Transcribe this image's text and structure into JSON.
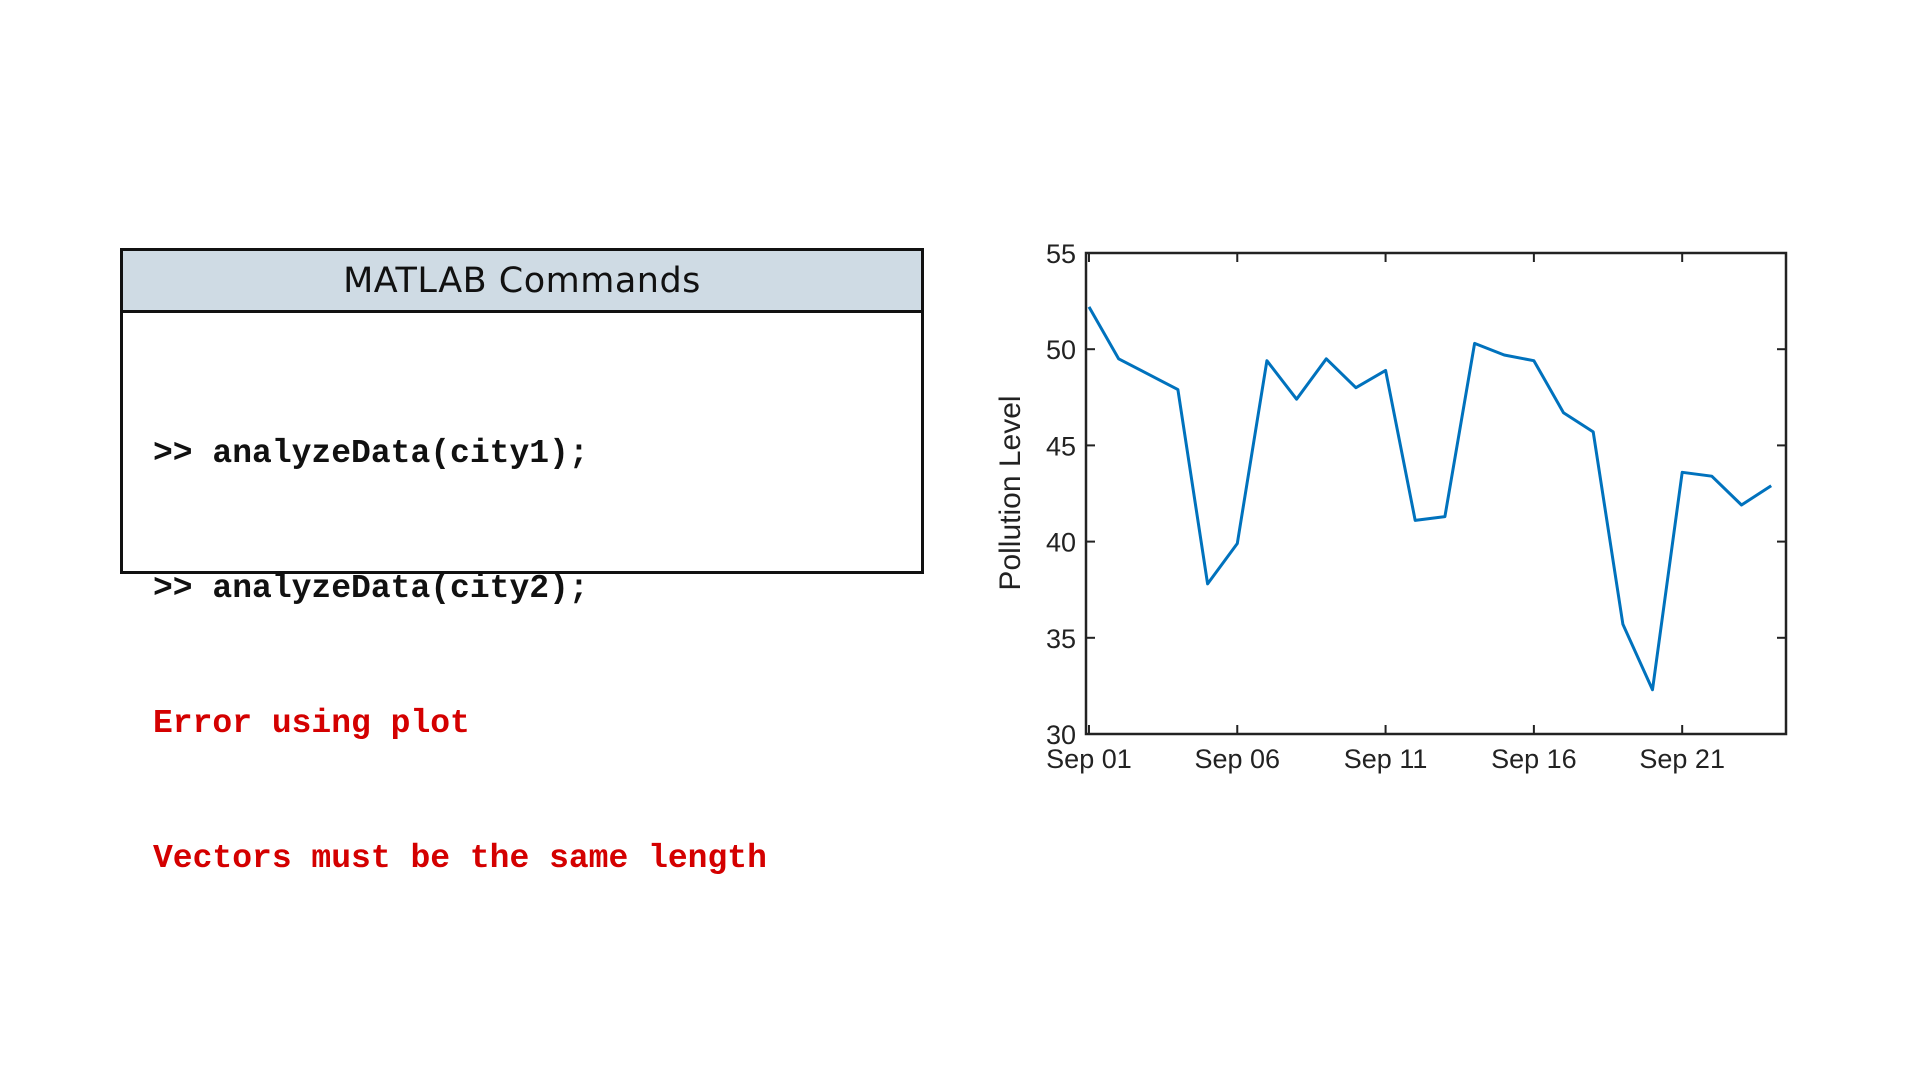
{
  "panel": {
    "title": "MATLAB Commands",
    "lines": [
      {
        "text": ">> analyzeData(city1);",
        "kind": "command"
      },
      {
        "text": ">> analyzeData(city2);",
        "kind": "command"
      },
      {
        "text": "Error using plot",
        "kind": "error"
      },
      {
        "text": "Vectors must be the same length",
        "kind": "error"
      }
    ]
  },
  "chart_data": {
    "type": "line",
    "title": "",
    "xlabel": "",
    "ylabel": "Pollution Level",
    "x": [
      "Sep 01",
      "Sep 02",
      "Sep 03",
      "Sep 04",
      "Sep 05",
      "Sep 06",
      "Sep 07",
      "Sep 08",
      "Sep 09",
      "Sep 10",
      "Sep 11",
      "Sep 12",
      "Sep 13",
      "Sep 14",
      "Sep 15",
      "Sep 16",
      "Sep 17",
      "Sep 18",
      "Sep 19",
      "Sep 20",
      "Sep 21",
      "Sep 22",
      "Sep 23",
      "Sep 24"
    ],
    "series": [
      {
        "values": [
          52.2,
          49.5,
          48.7,
          47.9,
          37.8,
          39.9,
          49.4,
          47.4,
          49.5,
          48.0,
          48.9,
          41.1,
          41.3,
          50.3,
          49.7,
          49.4,
          46.7,
          45.7,
          35.7,
          32.3,
          43.6,
          43.4,
          41.9,
          42.9
        ],
        "color": "#0072bd"
      }
    ],
    "xticks": [
      "Sep 01",
      "Sep 06",
      "Sep 11",
      "Sep 16",
      "Sep 21"
    ],
    "yticks": [
      30,
      35,
      40,
      45,
      50,
      55
    ],
    "ylim": [
      30,
      55
    ],
    "xlim": [
      "Sep 01",
      "Sep 24"
    ],
    "grid": false,
    "legend": "none"
  }
}
